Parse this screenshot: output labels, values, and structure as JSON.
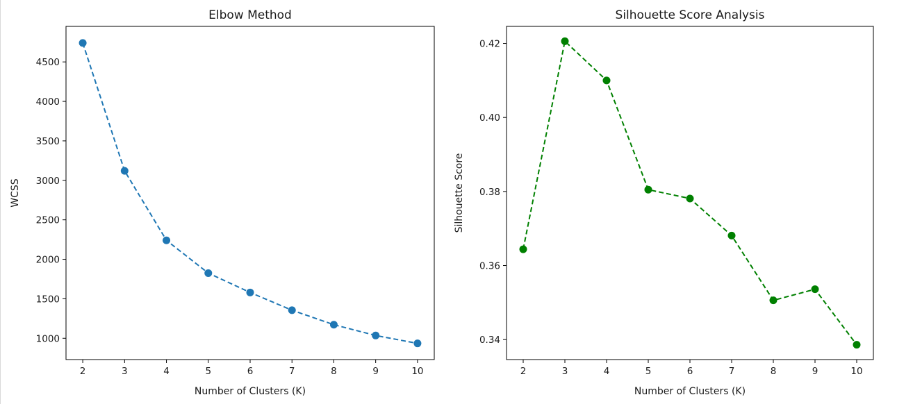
{
  "chart_data": [
    {
      "type": "line",
      "title": "Elbow Method",
      "xlabel": "Number of Clusters (K)",
      "ylabel": "WCSS",
      "x": [
        2,
        3,
        4,
        5,
        6,
        7,
        8,
        9,
        10
      ],
      "series": [
        {
          "values": [
            4740,
            3120,
            2240,
            1825,
            1580,
            1355,
            1172,
            1035,
            935
          ],
          "color": "#1f77b4",
          "linestyle": "dashed",
          "marker": "circle"
        }
      ],
      "xlim": [
        1.6,
        10.4
      ],
      "ylim": [
        730,
        4950
      ],
      "xticks": [
        "2",
        "3",
        "4",
        "5",
        "6",
        "7",
        "8",
        "9",
        "10"
      ],
      "yticks": [
        "1000",
        "1500",
        "2000",
        "2500",
        "3000",
        "3500",
        "4000",
        "4500"
      ],
      "grid": false
    },
    {
      "type": "line",
      "title": "Silhouette Score Analysis",
      "xlabel": "Number of Clusters (K)",
      "ylabel": "Silhouette Score",
      "x": [
        2,
        3,
        4,
        5,
        6,
        7,
        8,
        9,
        10
      ],
      "series": [
        {
          "values": [
            0.3644,
            0.4206,
            0.41,
            0.3805,
            0.3781,
            0.3681,
            0.3506,
            0.3536,
            0.3386
          ],
          "color": "#008000",
          "linestyle": "dashed",
          "marker": "circle"
        }
      ],
      "xlim": [
        1.6,
        10.4
      ],
      "ylim": [
        0.3346,
        0.4246
      ],
      "xticks": [
        "2",
        "3",
        "4",
        "5",
        "6",
        "7",
        "8",
        "9",
        "10"
      ],
      "yticks": [
        "0.34",
        "0.36",
        "0.38",
        "0.40",
        "0.42"
      ],
      "grid": false
    }
  ]
}
